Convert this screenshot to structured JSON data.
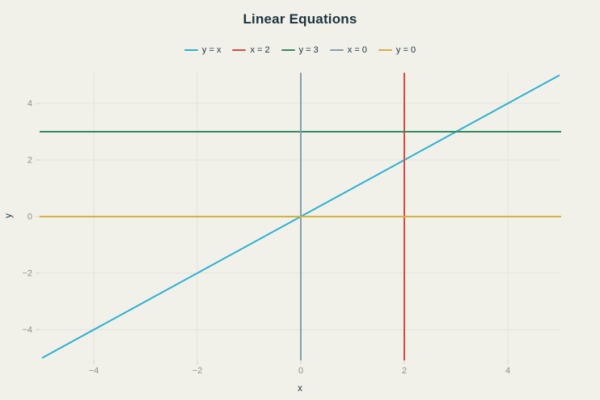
{
  "colors": {
    "background": "#f1f1ea",
    "text": "#1b323c",
    "tick_label": "#90908a",
    "grid": "#e3e3db",
    "tick": "#d2d2ca"
  },
  "chart_data": {
    "type": "line",
    "title": "Linear Equations",
    "xlabel": "x",
    "ylabel": "y",
    "xlim": [
      -5,
      5
    ],
    "ylim": [
      -5,
      5
    ],
    "x_ticks": [
      -4,
      -2,
      0,
      2,
      4
    ],
    "y_ticks": [
      -4,
      -2,
      0,
      2,
      4
    ],
    "grid": true,
    "legend_position": "top",
    "series": [
      {
        "name": "y = x",
        "color": "#2db0d2",
        "kind": "segment",
        "points": [
          [
            -5,
            -5
          ],
          [
            5,
            5
          ]
        ]
      },
      {
        "name": "x = 2",
        "color": "#d6493f",
        "kind": "vline",
        "x": 2
      },
      {
        "name": "y = 3",
        "color": "#36895e",
        "kind": "hline",
        "y": 3
      },
      {
        "name": "x = 0",
        "color": "#84a0ac",
        "kind": "vline",
        "x": 0
      },
      {
        "name": "y = 0",
        "color": "#d5b13e",
        "kind": "hline",
        "y": 0
      }
    ]
  }
}
